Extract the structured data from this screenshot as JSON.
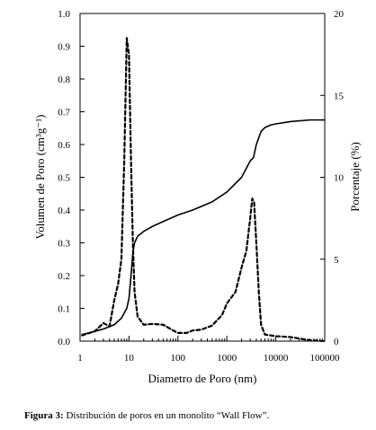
{
  "chart_data": {
    "type": "line",
    "xlabel": "Diametro de Poro (nm)",
    "ylabel_left": "Volumen de Poro (cm³g⁻¹)",
    "ylabel_right": "Porcentaje (%)",
    "x_scale": "log",
    "xlim": [
      1,
      100000
    ],
    "x_ticks": [
      "1",
      "10",
      "100",
      "1000",
      "10000",
      "100000"
    ],
    "ylim_left": [
      0,
      1.0
    ],
    "y_ticks_left": [
      "0.0",
      "0.1",
      "0.2",
      "0.3",
      "0.4",
      "0.5",
      "0.6",
      "0.7",
      "0.8",
      "0.9",
      "1.0"
    ],
    "ylim_right": [
      0,
      20
    ],
    "y_ticks_right": [
      "0",
      "5",
      "10",
      "15",
      "20"
    ],
    "grid": false,
    "series": [
      {
        "style": "solid",
        "axis": "left",
        "points": [
          [
            1.1,
            0.02
          ],
          [
            1.5,
            0.025
          ],
          [
            2,
            0.03
          ],
          [
            3,
            0.037
          ],
          [
            5,
            0.05
          ],
          [
            7,
            0.07
          ],
          [
            9,
            0.1
          ],
          [
            10,
            0.13
          ],
          [
            11,
            0.2
          ],
          [
            12,
            0.27
          ],
          [
            13,
            0.3
          ],
          [
            15,
            0.32
          ],
          [
            20,
            0.335
          ],
          [
            30,
            0.35
          ],
          [
            50,
            0.365
          ],
          [
            100,
            0.385
          ],
          [
            200,
            0.4
          ],
          [
            500,
            0.425
          ],
          [
            1000,
            0.455
          ],
          [
            2000,
            0.5
          ],
          [
            3000,
            0.55
          ],
          [
            3500,
            0.56
          ],
          [
            4000,
            0.6
          ],
          [
            5000,
            0.64
          ],
          [
            6000,
            0.652
          ],
          [
            8000,
            0.66
          ],
          [
            10000,
            0.663
          ],
          [
            20000,
            0.67
          ],
          [
            50000,
            0.675
          ],
          [
            100000,
            0.675
          ]
        ]
      },
      {
        "style": "dashed",
        "axis": "right",
        "points": [
          [
            1.1,
            0.35
          ],
          [
            2,
            0.6
          ],
          [
            3,
            1.1
          ],
          [
            4,
            0.9
          ],
          [
            5,
            2.5
          ],
          [
            6,
            3.5
          ],
          [
            7,
            5.0
          ],
          [
            8,
            11.0
          ],
          [
            9,
            18.5
          ],
          [
            10,
            17.5
          ],
          [
            11,
            11.0
          ],
          [
            12,
            6.0
          ],
          [
            13,
            3.0
          ],
          [
            15,
            1.5
          ],
          [
            20,
            1.0
          ],
          [
            30,
            1.05
          ],
          [
            50,
            1.0
          ],
          [
            80,
            0.65
          ],
          [
            100,
            0.5
          ],
          [
            150,
            0.5
          ],
          [
            200,
            0.65
          ],
          [
            300,
            0.7
          ],
          [
            500,
            0.95
          ],
          [
            800,
            1.6
          ],
          [
            1000,
            2.3
          ],
          [
            1500,
            3.0
          ],
          [
            2000,
            4.5
          ],
          [
            2500,
            5.5
          ],
          [
            3000,
            7.5
          ],
          [
            3300,
            8.7
          ],
          [
            3600,
            8.5
          ],
          [
            4000,
            6.0
          ],
          [
            4500,
            3.0
          ],
          [
            5000,
            1.0
          ],
          [
            6000,
            0.4
          ],
          [
            10000,
            0.3
          ],
          [
            20000,
            0.25
          ],
          [
            50000,
            0.05
          ],
          [
            100000,
            0.0
          ]
        ]
      }
    ]
  },
  "caption": {
    "label": "Figura 3:",
    "text": " Distribución de poros en un monolito “Wall Flow”."
  }
}
